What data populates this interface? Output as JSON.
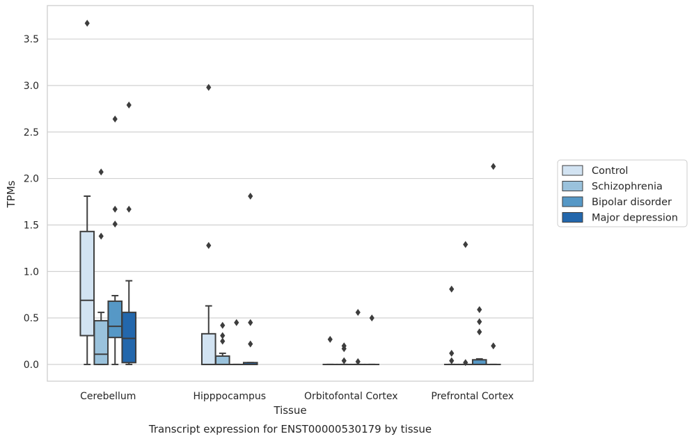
{
  "chart_data": {
    "type": "box",
    "xlabel": "Tissue",
    "ylabel": "TPMs",
    "caption": "Transcript expression for ENST00000530179 by tissue",
    "ylim": [
      -0.18,
      3.86
    ],
    "yticks": [
      "0.0",
      "0.5",
      "1.0",
      "1.5",
      "2.0",
      "2.5",
      "3.0",
      "3.5"
    ],
    "ytick_values": [
      0,
      0.5,
      1.0,
      1.5,
      2.0,
      2.5,
      3.0,
      3.5
    ],
    "grid": "horizontal",
    "legend_position": "right",
    "categories": [
      "Cerebellum",
      "Hipppocampus",
      "Orbitofontal Cortex",
      "Prefrontal Cortex"
    ],
    "series": [
      {
        "name": "Control",
        "color": "#d2e3f2",
        "boxes": [
          {
            "whislo": 0.0,
            "q1": 0.31,
            "med": 0.69,
            "q3": 1.43,
            "whishi": 1.81,
            "fliers": [
              3.67
            ]
          },
          {
            "whislo": 0.0,
            "q1": 0.0,
            "med": 0.0,
            "q3": 0.33,
            "whishi": 0.63,
            "fliers": [
              1.28,
              2.98
            ]
          },
          {
            "whislo": 0.0,
            "q1": 0.0,
            "med": 0.0,
            "q3": 0.0,
            "whishi": 0.0,
            "fliers": [
              0.27
            ]
          },
          {
            "whislo": 0.0,
            "q1": 0.0,
            "med": 0.0,
            "q3": 0.0,
            "whishi": 0.0,
            "fliers": [
              0.04,
              0.12,
              0.81
            ]
          }
        ]
      },
      {
        "name": "Schizophrenia",
        "color": "#9ac2dc",
        "boxes": [
          {
            "whislo": 0.0,
            "q1": 0.0,
            "med": 0.11,
            "q3": 0.47,
            "whishi": 0.56,
            "fliers": [
              1.38,
              2.07
            ]
          },
          {
            "whislo": 0.0,
            "q1": 0.0,
            "med": 0.0,
            "q3": 0.09,
            "whishi": 0.12,
            "fliers": [
              0.25,
              0.31,
              0.42
            ]
          },
          {
            "whislo": 0.0,
            "q1": 0.0,
            "med": 0.0,
            "q3": 0.0,
            "whishi": 0.0,
            "fliers": [
              0.04,
              0.17,
              0.2
            ]
          },
          {
            "whislo": 0.0,
            "q1": 0.0,
            "med": 0.0,
            "q3": 0.0,
            "whishi": 0.0,
            "fliers": [
              0.02,
              1.29
            ]
          }
        ]
      },
      {
        "name": "Bipolar disorder",
        "color": "#5698c6",
        "boxes": [
          {
            "whislo": 0.0,
            "q1": 0.29,
            "med": 0.41,
            "q3": 0.68,
            "whishi": 0.74,
            "fliers": [
              1.51,
              1.67,
              2.64
            ]
          },
          {
            "whislo": 0.0,
            "q1": 0.0,
            "med": 0.0,
            "q3": 0.0,
            "whishi": 0.0,
            "fliers": [
              0.45
            ]
          },
          {
            "whislo": 0.0,
            "q1": 0.0,
            "med": 0.0,
            "q3": 0.0,
            "whishi": 0.0,
            "fliers": [
              0.03,
              0.56
            ]
          },
          {
            "whislo": 0.0,
            "q1": 0.0,
            "med": 0.0,
            "q3": 0.05,
            "whishi": 0.06,
            "fliers": [
              0.35,
              0.46,
              0.59
            ]
          }
        ]
      },
      {
        "name": "Major depression",
        "color": "#2367ac",
        "boxes": [
          {
            "whislo": 0.0,
            "q1": 0.02,
            "med": 0.28,
            "q3": 0.56,
            "whishi": 0.9,
            "fliers": [
              1.67,
              2.79
            ]
          },
          {
            "whislo": 0.0,
            "q1": 0.0,
            "med": 0.0,
            "q3": 0.02,
            "whishi": 0.02,
            "fliers": [
              0.22,
              0.45,
              1.81
            ]
          },
          {
            "whislo": 0.0,
            "q1": 0.0,
            "med": 0.0,
            "q3": 0.0,
            "whishi": 0.0,
            "fliers": [
              0.5
            ]
          },
          {
            "whislo": 0.0,
            "q1": 0.0,
            "med": 0.0,
            "q3": 0.0,
            "whishi": 0.0,
            "fliers": [
              0.2,
              2.13
            ]
          }
        ]
      }
    ]
  }
}
